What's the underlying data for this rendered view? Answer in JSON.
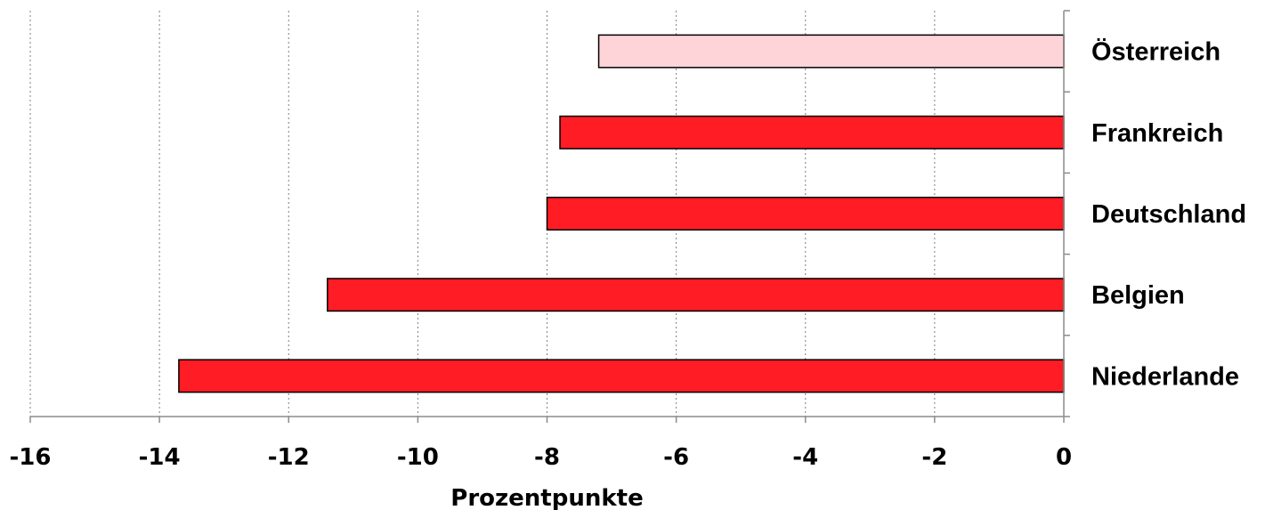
{
  "chart_data": {
    "type": "bar",
    "orientation": "horizontal",
    "categories": [
      "Österreich",
      "Frankreich",
      "Deutschland",
      "Belgien",
      "Niederlande"
    ],
    "values": [
      -7.2,
      -7.8,
      -8.0,
      -11.4,
      -13.7
    ],
    "colors": [
      "#ffd4d8",
      "#ff1c24",
      "#ff1c24",
      "#ff1c24",
      "#ff1c24"
    ],
    "xlabel": "Prozentpunkte",
    "xlim": [
      -16,
      0
    ],
    "xticks": [
      -16,
      -14,
      -12,
      -10,
      -8,
      -6,
      -4,
      -2,
      0
    ],
    "xtick_labels": [
      "-16",
      "-14",
      "-12",
      "-10",
      "-8",
      "-6",
      "-4",
      "-2",
      "0"
    ],
    "grid": "vertical-dotted",
    "category_labels_side": "right"
  }
}
